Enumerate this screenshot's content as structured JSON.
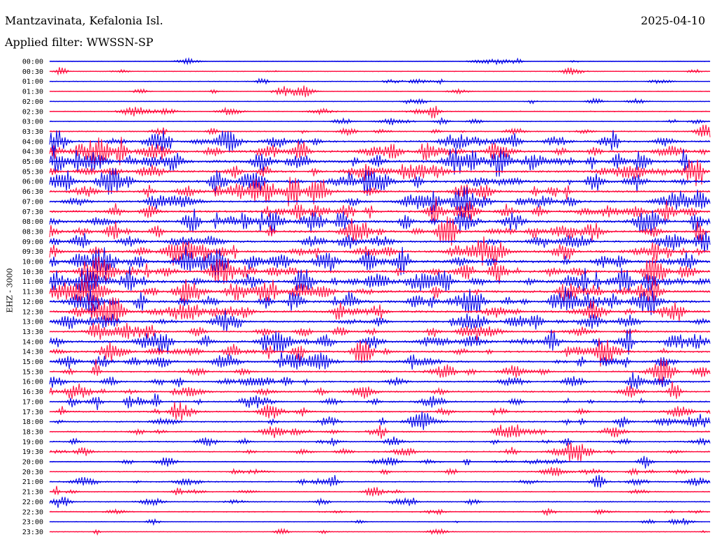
{
  "header": {
    "station": "Mantzavinata, Kefalonia Isl.",
    "date": "2025-04-10",
    "filter": "Applied filter: WWSSN-SP"
  },
  "chart_data": {
    "type": "line",
    "chart_kind": "helicorder",
    "channel_label": "EHZ - 3000",
    "row_interval_minutes": 30,
    "colors": {
      "odd_rows": "#0000e6",
      "even_rows": "#ff0a3c"
    },
    "rows": [
      {
        "time": "00:00",
        "activity": 0.05
      },
      {
        "time": "00:30",
        "activity": 0.05
      },
      {
        "time": "01:00",
        "activity": 0.08
      },
      {
        "time": "01:30",
        "activity": 0.06
      },
      {
        "time": "02:00",
        "activity": 0.05
      },
      {
        "time": "02:30",
        "activity": 0.12
      },
      {
        "time": "03:00",
        "activity": 0.1
      },
      {
        "time": "03:30",
        "activity": 0.22
      },
      {
        "time": "04:00",
        "activity": 0.45
      },
      {
        "time": "04:30",
        "activity": 0.55
      },
      {
        "time": "05:00",
        "activity": 0.7
      },
      {
        "time": "05:30",
        "activity": 0.5
      },
      {
        "time": "06:00",
        "activity": 0.65
      },
      {
        "time": "06:30",
        "activity": 0.5
      },
      {
        "time": "07:00",
        "activity": 0.45
      },
      {
        "time": "07:30",
        "activity": 0.55
      },
      {
        "time": "08:00",
        "activity": 0.65
      },
      {
        "time": "08:30",
        "activity": 0.55
      },
      {
        "time": "09:00",
        "activity": 0.5
      },
      {
        "time": "09:30",
        "activity": 0.6
      },
      {
        "time": "10:00",
        "activity": 0.7
      },
      {
        "time": "10:30",
        "activity": 0.65
      },
      {
        "time": "11:00",
        "activity": 0.75
      },
      {
        "time": "11:30",
        "activity": 0.6
      },
      {
        "time": "12:00",
        "activity": 0.65
      },
      {
        "time": "12:30",
        "activity": 0.55
      },
      {
        "time": "13:00",
        "activity": 0.45
      },
      {
        "time": "13:30",
        "activity": 0.4
      },
      {
        "time": "14:00",
        "activity": 0.55
      },
      {
        "time": "14:30",
        "activity": 0.45
      },
      {
        "time": "15:00",
        "activity": 0.45
      },
      {
        "time": "15:30",
        "activity": 0.35
      },
      {
        "time": "16:00",
        "activity": 0.35
      },
      {
        "time": "16:30",
        "activity": 0.35
      },
      {
        "time": "17:00",
        "activity": 0.32
      },
      {
        "time": "17:30",
        "activity": 0.3
      },
      {
        "time": "18:00",
        "activity": 0.3
      },
      {
        "time": "18:30",
        "activity": 0.32
      },
      {
        "time": "19:00",
        "activity": 0.22
      },
      {
        "time": "19:30",
        "activity": 0.25
      },
      {
        "time": "20:00",
        "activity": 0.18
      },
      {
        "time": "20:30",
        "activity": 0.18
      },
      {
        "time": "21:00",
        "activity": 0.2
      },
      {
        "time": "21:30",
        "activity": 0.15
      },
      {
        "time": "22:00",
        "activity": 0.15
      },
      {
        "time": "22:30",
        "activity": 0.15
      },
      {
        "time": "23:00",
        "activity": 0.08
      },
      {
        "time": "23:30",
        "activity": 0.05
      }
    ]
  }
}
